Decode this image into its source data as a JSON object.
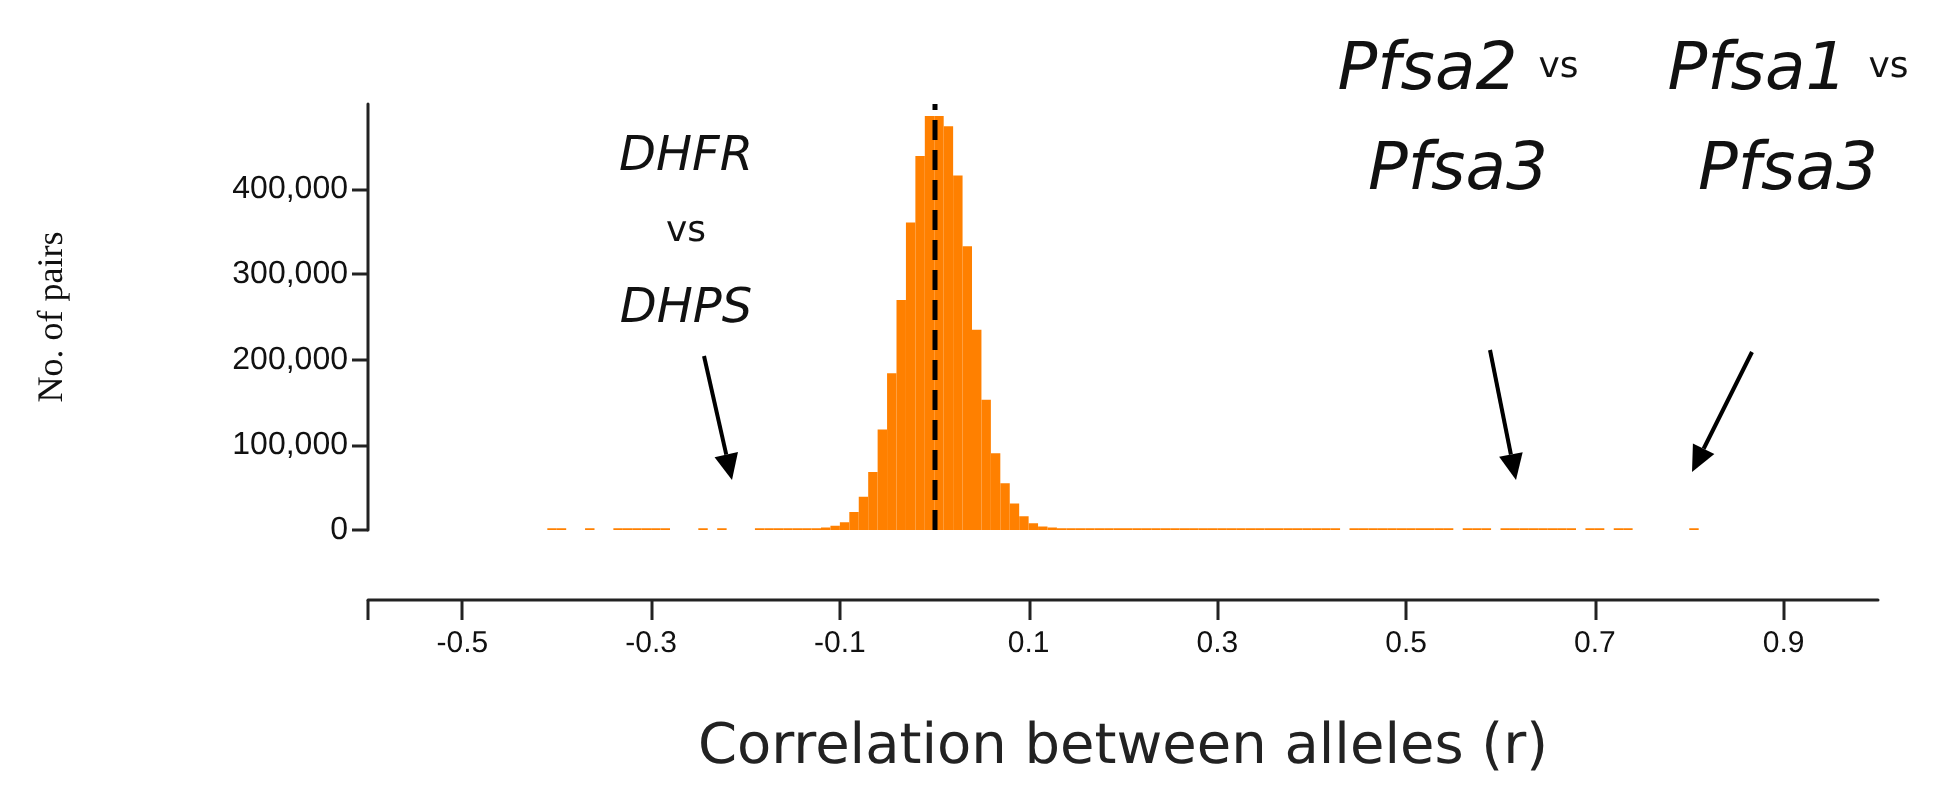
{
  "chart_data": {
    "type": "histogram",
    "xlabel": "Correlation between alleles (r)",
    "ylabel": "No. of pairs",
    "color": "#ff8000",
    "bins": [
      -0.41,
      -0.4,
      -0.39,
      -0.38,
      -0.37,
      -0.36,
      -0.35,
      -0.34,
      -0.33,
      -0.32,
      -0.31,
      -0.3,
      -0.29,
      -0.28,
      -0.27,
      -0.26,
      -0.25,
      -0.24,
      -0.23,
      -0.22,
      -0.21,
      -0.2,
      -0.19,
      -0.18,
      -0.17,
      -0.16,
      -0.15,
      -0.14,
      -0.13,
      -0.12,
      -0.11,
      -0.1,
      -0.09,
      -0.08,
      -0.07,
      -0.06,
      -0.05,
      -0.04,
      -0.03,
      -0.02,
      -0.01,
      0,
      0.01,
      0.02,
      0.03,
      0.04,
      0.05,
      0.06,
      0.07,
      0.08,
      0.09,
      0.1,
      0.11,
      0.12,
      0.13,
      0.14,
      0.15,
      0.16,
      0.17,
      0.18,
      0.19,
      0.2,
      0.21,
      0.22,
      0.23,
      0.24,
      0.25,
      0.26,
      0.27,
      0.28,
      0.29,
      0.3,
      0.31,
      0.32,
      0.33,
      0.34,
      0.35,
      0.36,
      0.37,
      0.38,
      0.39,
      0.4,
      0.41,
      0.42,
      0.43,
      0.44,
      0.45,
      0.46,
      0.47,
      0.48,
      0.49,
      0.5,
      0.51,
      0.52,
      0.53,
      0.54,
      0.55,
      0.56,
      0.57,
      0.58,
      0.59,
      0.6,
      0.61,
      0.62,
      0.63,
      0.64,
      0.65,
      0.66,
      0.67,
      0.68,
      0.69,
      0.7,
      0.71,
      0.72,
      0.73,
      0.74,
      0.75,
      0.76,
      0.77,
      0.78,
      0.79,
      0.8,
      0.81
    ],
    "values": [
      2000,
      2000,
      0,
      0,
      2000,
      0,
      0,
      2000,
      2000,
      2000,
      2000,
      2000,
      2000,
      0,
      0,
      0,
      2000,
      0,
      2000,
      0,
      0,
      0,
      2000,
      2000,
      2000,
      2000,
      2000,
      2000,
      2000,
      3000,
      5000,
      9000,
      21000,
      39000,
      68000,
      118000,
      184000,
      270000,
      361000,
      439000,
      486000,
      486000,
      474000,
      416000,
      333000,
      235000,
      153000,
      90000,
      55000,
      31000,
      16000,
      8000,
      4000,
      3000,
      2000,
      2000,
      2000,
      2000,
      2000,
      2000,
      2000,
      2000,
      2000,
      2000,
      2000,
      2000,
      2000,
      2000,
      2000,
      2000,
      2000,
      2000,
      2000,
      2000,
      2000,
      2000,
      2000,
      2000,
      2000,
      2000,
      2000,
      2000,
      2000,
      2000,
      0,
      2000,
      2000,
      2000,
      2000,
      2000,
      2000,
      2000,
      2000,
      2000,
      2000,
      2000,
      0,
      2000,
      2000,
      2000,
      0,
      2000,
      2000,
      2000,
      2000,
      2000,
      2000,
      2000,
      2000,
      0,
      2000,
      2000,
      0,
      2000,
      2000,
      0,
      0,
      0,
      0,
      0,
      0,
      2000
    ],
    "xlim": [
      -0.6,
      1.0
    ],
    "xticks": [
      {
        "value": -0.6,
        "label": null
      },
      -0.5,
      -0.3,
      -0.1,
      0.1,
      0.3,
      0.5,
      0.7,
      0.9
    ],
    "ylim": [
      0,
      500000
    ],
    "yticks": [
      {
        "value": 0,
        "label": "0"
      },
      {
        "value": 100000,
        "label": "100,000"
      },
      {
        "value": 200000,
        "label": "200,000"
      },
      {
        "value": 300000,
        "label": "300,000"
      },
      {
        "value": 400000,
        "label": "400,000"
      }
    ],
    "grid": false,
    "ref_lines": [
      {
        "axis": "x",
        "value": 0,
        "color": "#000000",
        "line_style": "dashed"
      }
    ],
    "annotations": [
      "DHFR vs DHPS",
      "Pfsa2 vs Pfsa3",
      "Pfsa1 vs Pfsa3"
    ]
  }
}
